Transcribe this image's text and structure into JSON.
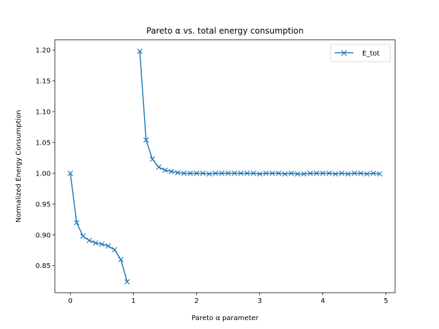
{
  "chart_data": {
    "type": "line",
    "title": "Pareto α vs. total energy consumption",
    "xlabel": "Pareto α parameter",
    "ylabel": "Normalized Energy Consumption",
    "xlim": [
      -0.245,
      5.145
    ],
    "ylim": [
      0.8063,
      1.2167
    ],
    "xticks": [
      0,
      1,
      2,
      3,
      4,
      5
    ],
    "xtick_labels": [
      "0",
      "1",
      "2",
      "3",
      "4",
      "5"
    ],
    "yticks": [
      0.85,
      0.9,
      0.95,
      1.0,
      1.05,
      1.1,
      1.15,
      1.2
    ],
    "ytick_labels": [
      "0.85",
      "0.90",
      "0.95",
      "1.00",
      "1.05",
      "1.10",
      "1.15",
      "1.20"
    ],
    "grid": false,
    "legend_position": "top-right",
    "series": [
      {
        "name": "E_tot",
        "color": "#1f77b4",
        "marker": "x",
        "segments": [
          {
            "x": [
              0.0,
              0.1,
              0.2,
              0.3,
              0.4,
              0.5,
              0.6,
              0.7,
              0.8,
              0.9
            ],
            "y": [
              1.0,
              0.92,
              0.898,
              0.891,
              0.887,
              0.885,
              0.882,
              0.876,
              0.86,
              0.824
            ]
          },
          {
            "x": [
              1.1,
              1.2,
              1.3,
              1.4,
              1.5,
              1.6,
              1.7,
              1.8,
              1.9,
              2.0,
              2.1,
              2.2,
              2.3,
              2.4,
              2.5,
              2.6,
              2.7,
              2.8,
              2.9,
              3.0,
              3.1,
              3.2,
              3.3,
              3.4,
              3.5,
              3.6,
              3.7,
              3.8,
              3.9,
              4.0,
              4.1,
              4.2,
              4.3,
              4.4,
              4.5,
              4.6,
              4.7,
              4.8,
              4.9
            ],
            "y": [
              1.198,
              1.054,
              1.023,
              1.01,
              1.005,
              1.003,
              1.001,
              1.0,
              1.0,
              1.0,
              1.0,
              0.999,
              1.0,
              1.0,
              1.0,
              1.0,
              1.0,
              1.0,
              1.0,
              0.999,
              1.0,
              1.0,
              1.0,
              0.999,
              1.0,
              0.999,
              0.999,
              1.0,
              1.0,
              1.0,
              1.0,
              0.999,
              1.0,
              0.999,
              1.0,
              1.0,
              0.999,
              1.0,
              0.999
            ]
          }
        ]
      }
    ]
  }
}
